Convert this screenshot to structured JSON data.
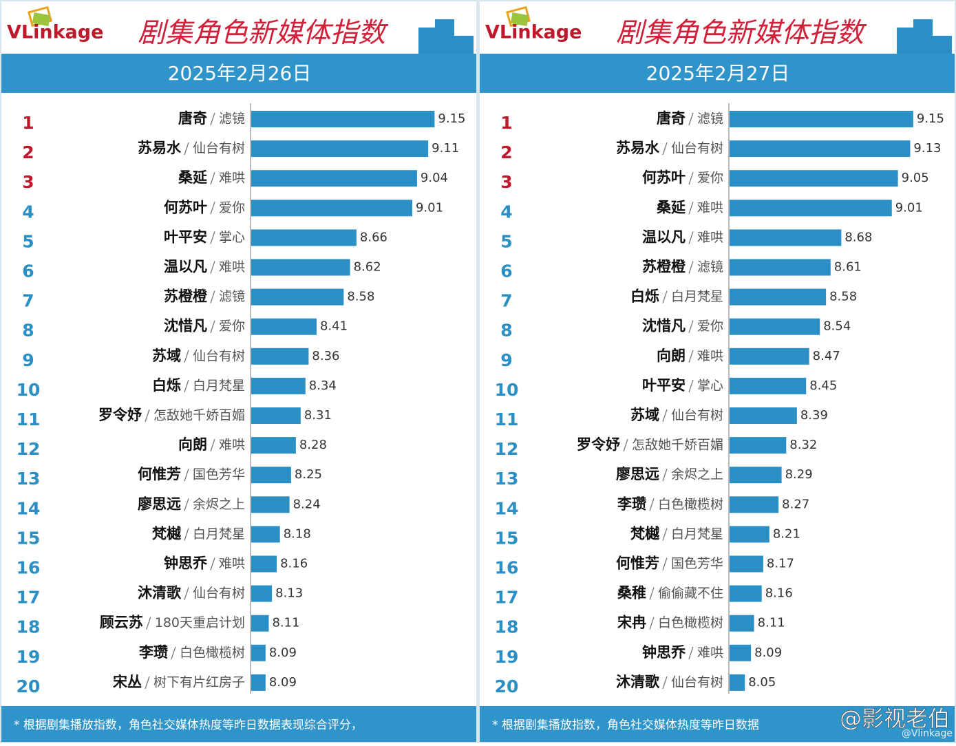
{
  "logo": "VLinkage",
  "chart_data": [
    {
      "type": "bar",
      "orientation": "horizontal",
      "title": "剧集角色新媒体指数",
      "subtitle": "2025年2月26日",
      "ranks": [
        1,
        2,
        3,
        4,
        5,
        6,
        7,
        8,
        9,
        10,
        11,
        12,
        13,
        14,
        15,
        16,
        17,
        18,
        19,
        20
      ],
      "rank_colors": [
        "#c0182b",
        "#c0182b",
        "#c0182b",
        "#2a8fc4",
        "#2a8fc4",
        "#2a8fc4",
        "#2a8fc4",
        "#2a8fc4",
        "#2a8fc4",
        "#2a8fc4",
        "#2a8fc4",
        "#2a8fc4",
        "#2a8fc4",
        "#2a8fc4",
        "#2a8fc4",
        "#2a8fc4",
        "#2a8fc4",
        "#2a8fc4",
        "#2a8fc4",
        "#2a8fc4"
      ],
      "categories": [
        "唐奇",
        "苏易水",
        "桑延",
        "何苏叶",
        "叶平安",
        "温以凡",
        "苏橙橙",
        "沈惜凡",
        "苏域",
        "白烁",
        "罗令妤",
        "向朗",
        "何惟芳",
        "廖思远",
        "梵樾",
        "钟思乔",
        "沐清歌",
        "顾云苏",
        "李瓒",
        "宋丛"
      ],
      "dramas": [
        "滤镜",
        "仙台有树",
        "难哄",
        "爱你",
        "掌心",
        "难哄",
        "滤镜",
        "爱你",
        "仙台有树",
        "白月梵星",
        "怎敌她千娇百媚",
        "难哄",
        "国色芳华",
        "余烬之上",
        "白月梵星",
        "难哄",
        "仙台有树",
        "180天重启计划",
        "白色橄榄树",
        "树下有片红房子"
      ],
      "values": [
        9.15,
        9.11,
        9.04,
        9.01,
        8.66,
        8.62,
        8.58,
        8.41,
        8.36,
        8.34,
        8.31,
        8.28,
        8.25,
        8.24,
        8.18,
        8.16,
        8.13,
        8.11,
        8.09,
        8.09
      ],
      "color": "#2a8fc4",
      "xlim": [
        8.0,
        9.2
      ],
      "footnote": "* 根据剧集播放指数，角色社交媒体热度等昨日数据表现综合评分，"
    },
    {
      "type": "bar",
      "orientation": "horizontal",
      "title": "剧集角色新媒体指数",
      "subtitle": "2025年2月27日",
      "ranks": [
        1,
        2,
        3,
        4,
        5,
        6,
        7,
        8,
        9,
        10,
        11,
        12,
        13,
        14,
        15,
        16,
        17,
        18,
        19,
        20
      ],
      "rank_colors": [
        "#c0182b",
        "#c0182b",
        "#c0182b",
        "#2a8fc4",
        "#2a8fc4",
        "#2a8fc4",
        "#2a8fc4",
        "#2a8fc4",
        "#2a8fc4",
        "#2a8fc4",
        "#2a8fc4",
        "#2a8fc4",
        "#2a8fc4",
        "#2a8fc4",
        "#2a8fc4",
        "#2a8fc4",
        "#2a8fc4",
        "#2a8fc4",
        "#2a8fc4",
        "#2a8fc4"
      ],
      "categories": [
        "唐奇",
        "苏易水",
        "何苏叶",
        "桑延",
        "温以凡",
        "苏橙橙",
        "白烁",
        "沈惜凡",
        "向朗",
        "叶平安",
        "苏域",
        "罗令妤",
        "廖思远",
        "李瓒",
        "梵樾",
        "何惟芳",
        "桑稚",
        "宋冉",
        "钟思乔",
        "沐清歌"
      ],
      "dramas": [
        "滤镜",
        "仙台有树",
        "爱你",
        "难哄",
        "难哄",
        "滤镜",
        "白月梵星",
        "爱你",
        "难哄",
        "掌心",
        "仙台有树",
        "怎敌她千娇百媚",
        "余烬之上",
        "白色橄榄树",
        "白月梵星",
        "国色芳华",
        "偷偷藏不住",
        "白色橄榄树",
        "难哄",
        "仙台有树"
      ],
      "values": [
        9.15,
        9.13,
        9.05,
        9.01,
        8.68,
        8.61,
        8.58,
        8.54,
        8.47,
        8.45,
        8.39,
        8.32,
        8.29,
        8.27,
        8.21,
        8.17,
        8.16,
        8.11,
        8.09,
        8.05
      ],
      "color": "#2a8fc4",
      "xlim": [
        7.95,
        9.2
      ],
      "footnote": "* 根据剧集播放指数，角色社交媒体热度等昨日数据"
    }
  ],
  "watermark": "@影视老伯",
  "watermark_sub": "@Vlinkage"
}
